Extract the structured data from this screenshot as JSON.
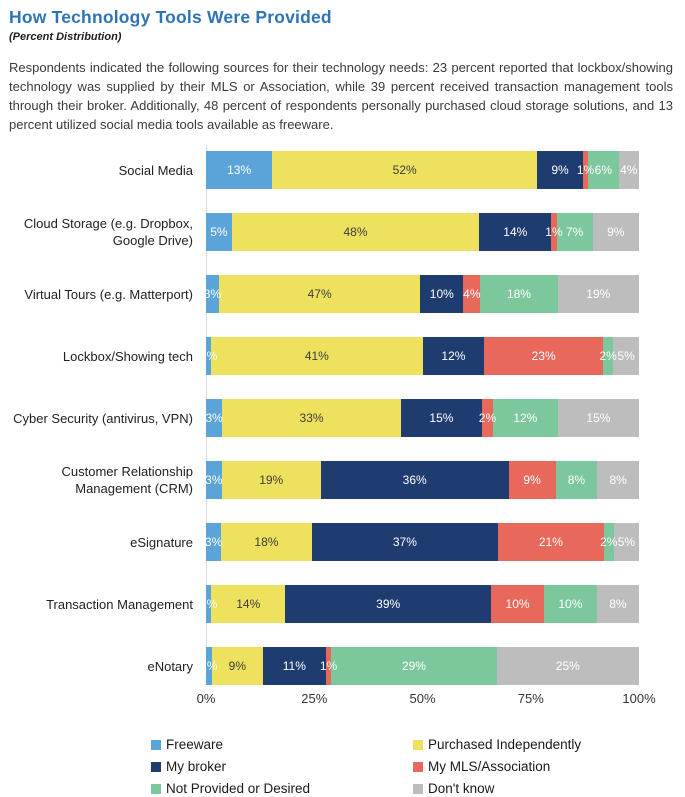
{
  "header": {
    "title": "How Technology Tools Were Provided",
    "subtitle": "(Percent Distribution)"
  },
  "intro": "Respondents indicated the following sources for their technology needs: 23 percent reported that lockbox/showing technology was supplied by their MLS or Association, while 39 percent received transaction management tools through their broker. Additionally, 48 percent of respondents personally purchased cloud storage solutions, and 13 percent utilized social media tools available as freeware.",
  "chart_data": {
    "type": "bar",
    "orientation": "horizontal",
    "stacked": true,
    "normalized_to_full_width": true,
    "title": "How Technology Tools Were Provided",
    "subtitle": "(Percent Distribution)",
    "xlabel": "",
    "ylabel": "",
    "xlim": [
      0,
      100
    ],
    "x_ticks": [
      "0%",
      "25%",
      "50%",
      "75%",
      "100%"
    ],
    "grid": false,
    "legend_position": "bottom",
    "value_suffix": "%",
    "categories": [
      "Social Media",
      "Cloud Storage (e.g. Dropbox, Google Drive)",
      "Virtual Tours (e.g. Matterport)",
      "Lockbox/Showing tech",
      "Cyber Security (antivirus, VPN)",
      "Customer Relationship Management (CRM)",
      "eSignature",
      "Transaction Management",
      "eNotary"
    ],
    "series": [
      {
        "name": "Freeware",
        "color": "#5BA4D9",
        "label_color": "#FFFFFF",
        "values": [
          13,
          5,
          3,
          1,
          3,
          3,
          3,
          1,
          1
        ]
      },
      {
        "name": "Purchased Independently",
        "color": "#EDE15E",
        "label_color": "#3D3D3D",
        "values": [
          52,
          48,
          47,
          41,
          33,
          19,
          18,
          14,
          9
        ]
      },
      {
        "name": "My broker",
        "color": "#1F3C70",
        "label_color": "#FFFFFF",
        "values": [
          9,
          14,
          10,
          12,
          15,
          36,
          37,
          39,
          11
        ]
      },
      {
        "name": "My MLS/Association",
        "color": "#E8695B",
        "label_color": "#FFFFFF",
        "values": [
          1,
          1,
          4,
          23,
          2,
          9,
          21,
          10,
          1
        ]
      },
      {
        "name": "Not Provided or Desired",
        "color": "#7CC79B",
        "label_color": "#FFFFFF",
        "values": [
          6,
          7,
          18,
          2,
          12,
          8,
          2,
          10,
          29
        ]
      },
      {
        "name": "Don't know",
        "color": "#BDBDBD",
        "label_color": "#FFFFFF",
        "values": [
          4,
          9,
          19,
          5,
          15,
          8,
          5,
          8,
          25
        ]
      }
    ]
  }
}
